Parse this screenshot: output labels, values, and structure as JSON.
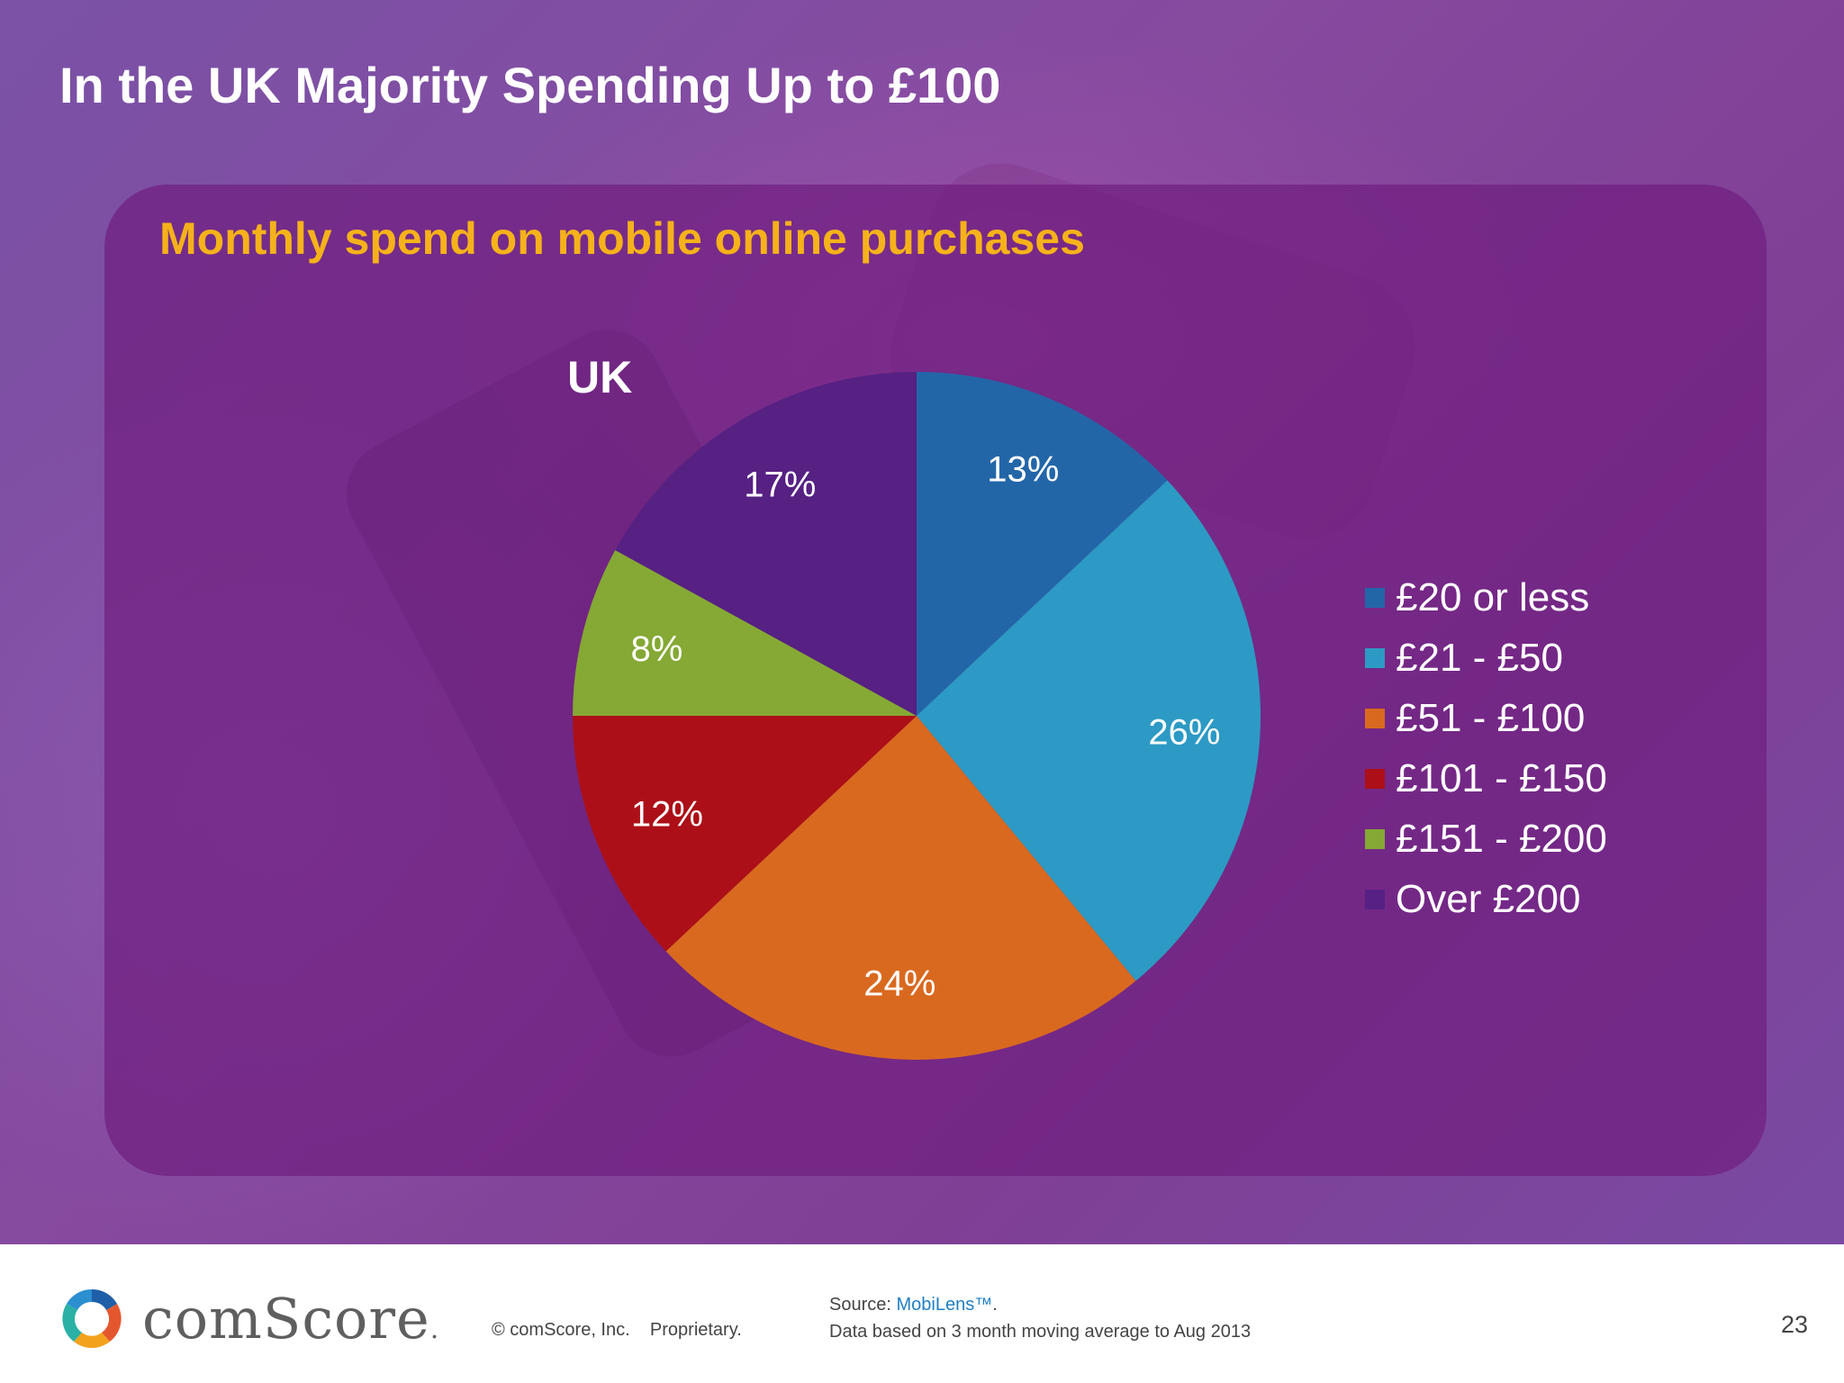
{
  "slide": {
    "title": "In the UK Majority Spending Up to £100",
    "subtitle": "Monthly spend on mobile online purchases"
  },
  "chart_data": {
    "type": "pie",
    "title": "UK",
    "categories": [
      "£20 or less",
      "£21 - £50",
      "£51 - £100",
      "£101 - £150",
      "£151 - £200",
      "Over £200"
    ],
    "values": [
      13,
      26,
      24,
      12,
      8,
      17
    ],
    "data_labels": [
      "13%",
      "26%",
      "24%",
      "12%",
      "8%",
      "17%"
    ],
    "colors": [
      "#2366a8",
      "#2c9ac4",
      "#d9691f",
      "#ac0f17",
      "#85a934",
      "#562183"
    ],
    "legend_position": "right"
  },
  "footer": {
    "brand": "comScore",
    "brand_suffix": ".",
    "copyright": "© comScore, Inc.",
    "proprietary": "Proprietary.",
    "source_prefix": "Source: ",
    "source_name": "MobiLens™",
    "source_suffix": ".",
    "source_note": "Data based on 3 month moving average to Aug 2013",
    "page_number": "23"
  }
}
